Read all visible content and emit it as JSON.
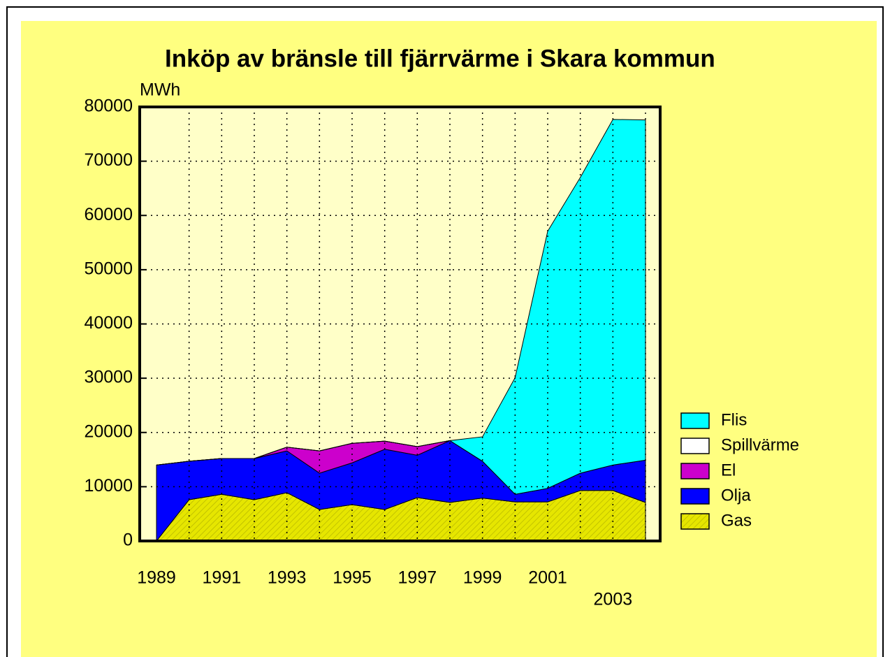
{
  "chart_data": {
    "type": "stacked_area",
    "title": "Inköp av bränsle till fjärrvärme i Skara kommun",
    "y_label": "MWh",
    "categories": [
      "1989",
      null,
      "1991",
      null,
      "1993",
      null,
      "1995",
      null,
      "1997",
      null,
      "1999",
      null,
      "2001",
      null,
      "2003",
      null
    ],
    "series": [
      {
        "name": "Gas",
        "color": "#e6e600",
        "values": [
          0,
          7600,
          8600,
          7600,
          8900,
          5800,
          6700,
          5800,
          8000,
          7100,
          7900,
          7200,
          7200,
          9300,
          9300,
          7100
        ]
      },
      {
        "name": "Olja",
        "color": "#0000ff",
        "values": [
          14000,
          7100,
          6600,
          7600,
          7700,
          6700,
          7700,
          11100,
          7800,
          11400,
          6800,
          1400,
          2500,
          3200,
          4700,
          7800
        ]
      },
      {
        "name": "El",
        "color": "#cc00cc",
        "values": [
          0,
          0,
          0,
          0,
          700,
          4100,
          3600,
          1500,
          1600,
          0,
          0,
          0,
          0,
          0,
          0,
          0
        ]
      },
      {
        "name": "Spillvärme",
        "color": "#ffffff",
        "values": [
          0,
          0,
          0,
          0,
          0,
          0,
          0,
          0,
          0,
          0,
          0,
          0,
          0,
          0,
          0,
          0
        ]
      },
      {
        "name": "Flis",
        "color": "#00ffff",
        "values": [
          0,
          0,
          0,
          0,
          0,
          0,
          0,
          0,
          0,
          0,
          4500,
          21500,
          47400,
          54500,
          63700,
          62700
        ]
      }
    ],
    "ylim": [
      0,
      80000
    ],
    "yticks": [
      0,
      10000,
      20000,
      30000,
      40000,
      50000,
      60000,
      70000,
      80000
    ],
    "grid": true,
    "legend": "right"
  }
}
